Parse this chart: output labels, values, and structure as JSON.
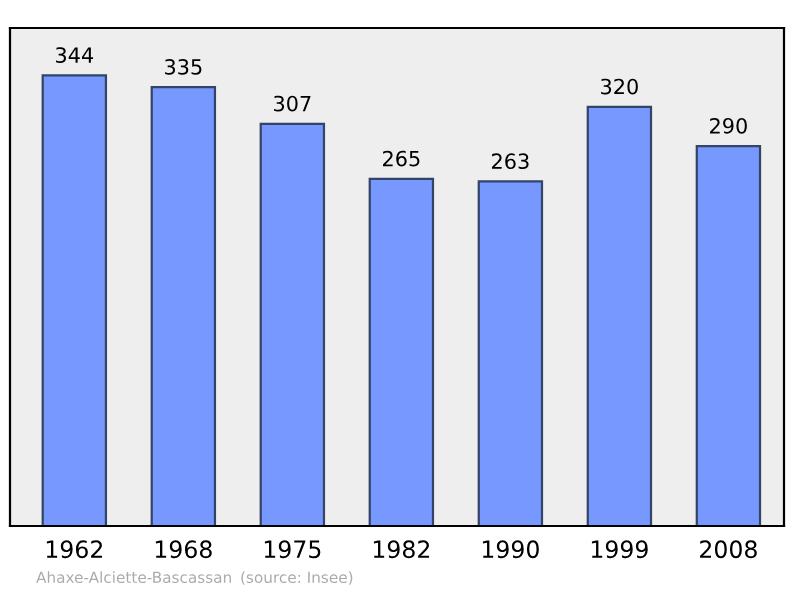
{
  "chart_data": {
    "type": "bar",
    "categories": [
      "1962",
      "1968",
      "1975",
      "1982",
      "1990",
      "1999",
      "2008"
    ],
    "values": [
      344,
      335,
      307,
      265,
      263,
      320,
      290
    ],
    "color": "#7799ff",
    "data_labels": true,
    "grid": false,
    "legend": false,
    "annotations": [
      "Ahaxe-Alciette-Bascassan",
      "(source: Insee)"
    ]
  }
}
